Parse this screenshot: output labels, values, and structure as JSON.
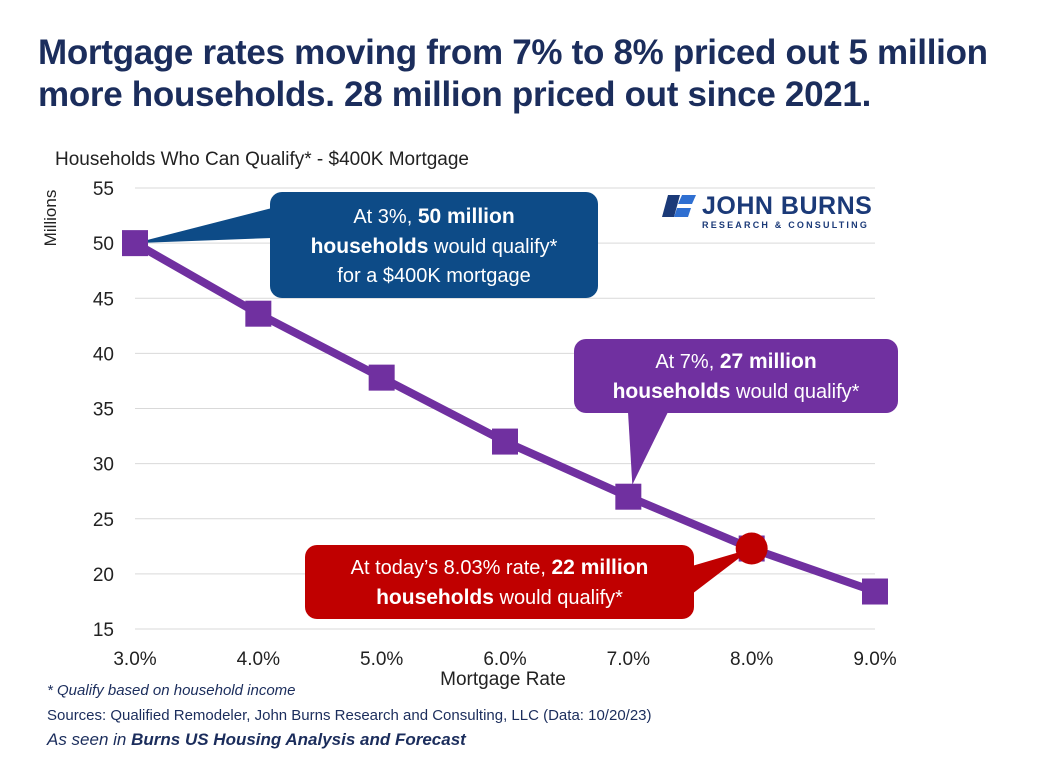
{
  "headline": {
    "line1": "Mortgage rates moving from 7% to 8% priced out 5 million",
    "line2": "more households. 28 million priced out since 2021."
  },
  "chart_data": {
    "type": "line",
    "title": "Households Who Can Qualify* - $400K Mortgage",
    "xlabel": "Mortgage Rate",
    "ylabel": "Millions",
    "categories": [
      "3.0%",
      "4.0%",
      "5.0%",
      "6.0%",
      "7.0%",
      "8.0%",
      "9.0%"
    ],
    "x": [
      3.0,
      4.0,
      5.0,
      6.0,
      7.0,
      8.0,
      9.0
    ],
    "ylim": [
      15,
      55
    ],
    "yticks": [
      15,
      20,
      25,
      30,
      35,
      40,
      45,
      50,
      55
    ],
    "grid": true,
    "series": [
      {
        "name": "Households who can qualify",
        "color": "#7030a0",
        "values": [
          50,
          43.6,
          37.8,
          32.0,
          27.0,
          22.3,
          18.4
        ]
      }
    ],
    "highlight": {
      "x": 8.0,
      "y": 22.3,
      "color": "#c00000"
    },
    "annotations": [
      {
        "id": "rate-3",
        "color": "#0d4b87",
        "pre": "At 3%, ",
        "bold": "50 million",
        "bold2": "households",
        "post": " would qualify*",
        "line3": "for a $400K mortgage"
      },
      {
        "id": "rate-7",
        "color": "#7030a0",
        "pre": "At 7%, ",
        "bold": "27 million",
        "bold2": "households",
        "post": " would qualify*"
      },
      {
        "id": "rate-8",
        "color": "#c00000",
        "pre": "At today’s 8.03% rate, ",
        "bold": "22 million",
        "bold2": "households",
        "post": " would qualify*"
      }
    ]
  },
  "logo": {
    "name": "JOHN BURNS",
    "tagline": "RESEARCH & CONSULTING",
    "color": "#1b3a78"
  },
  "footnotes": {
    "qualify": "* Qualify based on household income",
    "sources": "Sources: Qualified Remodeler, John Burns Research and Consulting, LLC (Data: 10/20/23)",
    "seen_pre": "As seen in ",
    "seen_bold": "Burns US Housing Analysis and Forecast"
  }
}
